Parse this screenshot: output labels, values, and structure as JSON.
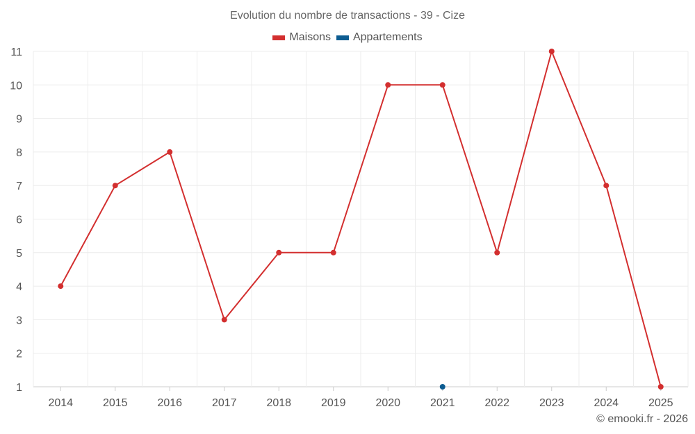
{
  "chart_data": {
    "type": "line",
    "title": "Evolution du nombre de transactions - 39 - Cize",
    "xlabel": "",
    "ylabel": "",
    "categories": [
      "2014",
      "2015",
      "2016",
      "2017",
      "2018",
      "2019",
      "2020",
      "2021",
      "2022",
      "2023",
      "2024",
      "2025"
    ],
    "yticks": [
      1,
      2,
      3,
      4,
      5,
      6,
      7,
      8,
      9,
      10,
      11
    ],
    "ylim": [
      1,
      11
    ],
    "grid": true,
    "legend_position": "top-center",
    "series": [
      {
        "name": "Maisons",
        "color": "#d32f2f",
        "values": [
          4,
          7,
          8,
          3,
          5,
          5,
          10,
          10,
          5,
          11,
          7,
          1
        ]
      },
      {
        "name": "Appartements",
        "color": "#0d5c91",
        "values": [
          null,
          null,
          null,
          null,
          null,
          null,
          null,
          1,
          null,
          null,
          null,
          null
        ]
      }
    ]
  },
  "credit": "© emooki.fr - 2026"
}
